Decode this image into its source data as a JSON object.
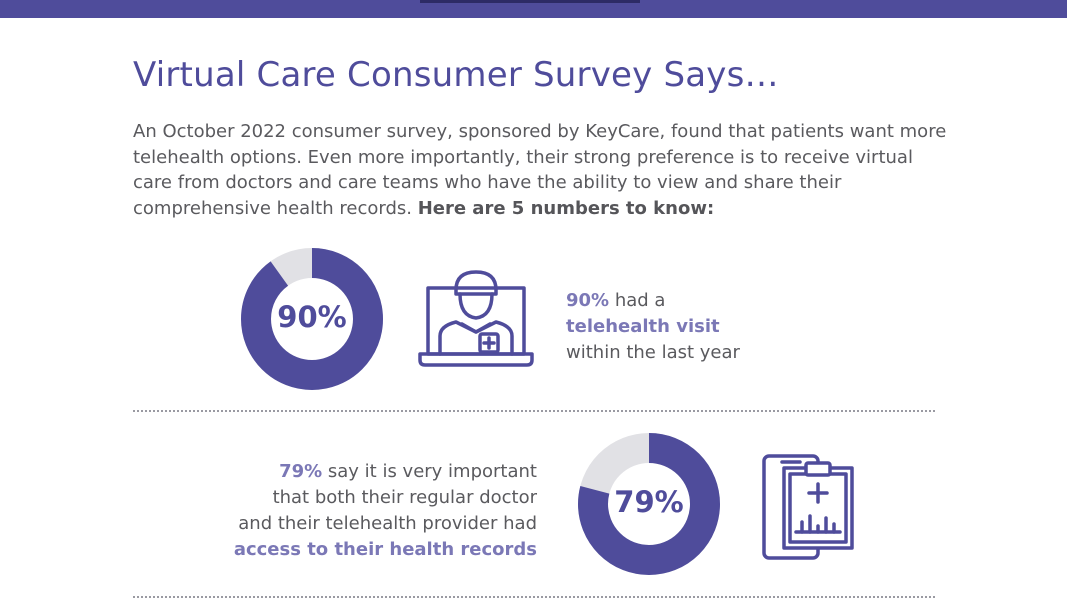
{
  "header": {
    "title": "Virtual Care Consumer Survey Says…"
  },
  "intro": {
    "text": "An October 2022 consumer survey, sponsored by KeyCare, found that patients want more telehealth options. Even more importantly, their strong preference is to receive virtual care from doctors and care teams who have the ability to view and share their comprehensive health records. ",
    "bold": "Here are 5 numbers to know:"
  },
  "colors": {
    "accent": "#4f4c9b",
    "highlight": "#7b78b6",
    "ring_track": "#e1e1e5",
    "text": "#5a5a5e"
  },
  "stats": [
    {
      "percent_label": "90%",
      "value": 90,
      "icon": "telehealth-doctor-laptop-icon",
      "line1_highlight": "90%",
      "line1_rest": " had a",
      "line2_highlight": "telehealth visit",
      "line3": "within the last year"
    },
    {
      "percent_label": "79%",
      "value": 79,
      "icon": "medical-clipboard-phone-icon",
      "line1_highlight": "79%",
      "line1_rest": " say it is very important",
      "line2": "that both their regular doctor",
      "line3": "and their telehealth provider had",
      "line4_highlight": "access to their health records"
    }
  ]
}
